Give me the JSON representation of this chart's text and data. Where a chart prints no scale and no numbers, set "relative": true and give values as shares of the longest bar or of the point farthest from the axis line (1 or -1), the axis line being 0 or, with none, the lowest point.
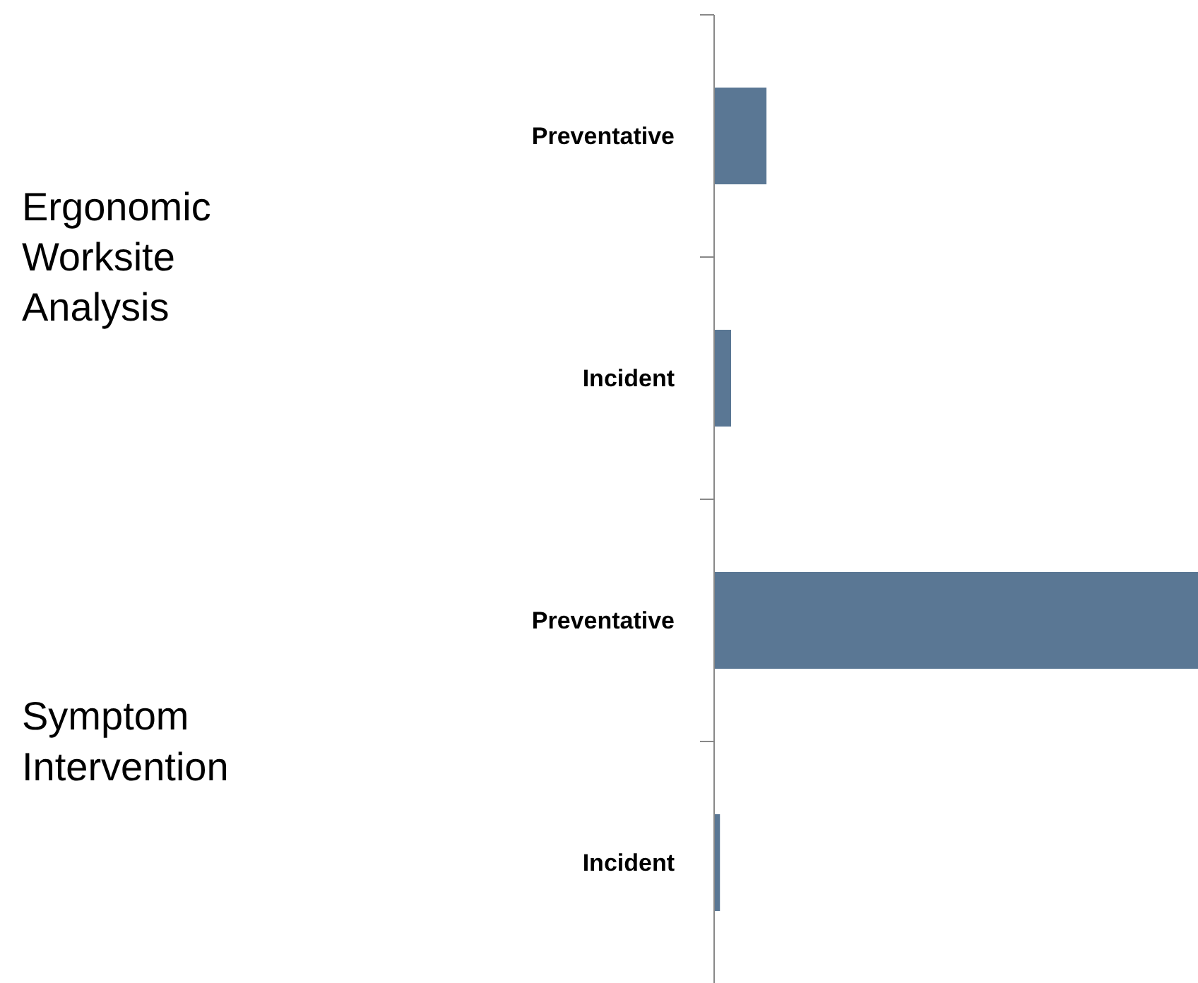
{
  "chart_data": {
    "type": "bar",
    "orientation": "horizontal",
    "relative": true,
    "categories": [
      "Preventative",
      "Incident",
      "Preventative",
      "Incident"
    ],
    "values": [
      0.108,
      0.035,
      1,
      0.012
    ],
    "color": "#5a7794",
    "annotations": [
      "Ergonomic Worksite Analysis",
      "Symptom Intervention"
    ]
  }
}
